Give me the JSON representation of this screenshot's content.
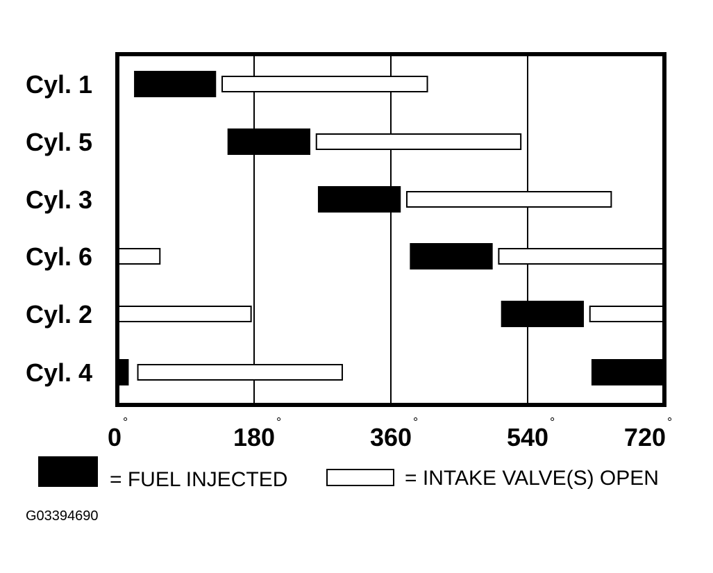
{
  "chart_data": {
    "type": "gantt",
    "x_min": 0,
    "x_max": 720,
    "x_ticks": [
      0,
      180,
      360,
      540,
      720
    ],
    "x_tick_labels": [
      "0",
      "180",
      "360",
      "540",
      "720"
    ],
    "degree_symbol": "°",
    "vertical_gridlines": [
      180,
      360,
      540
    ],
    "rows": [
      {
        "label": "Cyl. 1",
        "fuel": [
          [
            22,
            130
          ]
        ],
        "intake": [
          [
            138,
            408
          ]
        ]
      },
      {
        "label": "Cyl. 5",
        "fuel": [
          [
            145,
            254
          ]
        ],
        "intake": [
          [
            262,
            531
          ]
        ]
      },
      {
        "label": "Cyl. 3",
        "fuel": [
          [
            264,
            373
          ]
        ],
        "intake": [
          [
            381,
            650
          ]
        ]
      },
      {
        "label": "Cyl. 6",
        "fuel": [
          [
            385,
            494
          ]
        ],
        "intake": [
          [
            0,
            56
          ],
          [
            502,
            720
          ]
        ]
      },
      {
        "label": "Cyl. 2",
        "fuel": [
          [
            505,
            614
          ]
        ],
        "intake": [
          [
            0,
            176
          ],
          [
            622,
            720
          ]
        ]
      },
      {
        "label": "Cyl. 4",
        "fuel": [
          [
            0,
            15
          ],
          [
            624,
            720
          ]
        ],
        "intake": [
          [
            27,
            296
          ]
        ]
      }
    ],
    "legend": {
      "fuel_label": "= FUEL INJECTED",
      "intake_label": "= INTAKE VALVE(S) OPEN"
    },
    "colors": {
      "fuel": "#000000",
      "intake": "#ffffff",
      "stroke": "#000000"
    }
  },
  "figure_id": "G03394690"
}
